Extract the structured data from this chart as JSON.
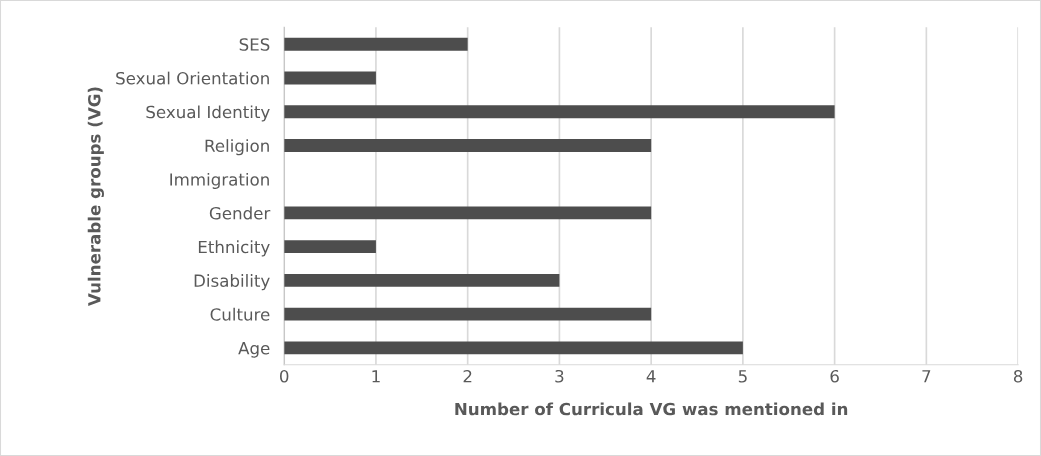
{
  "chart_data": {
    "type": "bar",
    "orientation": "horizontal",
    "xlabel": "Number of Curricula VG was mentioned in",
    "ylabel": "Vulnerable groups (VG)",
    "categories": [
      "SES",
      "Sexual Orientation",
      "Sexual Identity",
      "Religion",
      "Immigration",
      "Gender",
      "Ethnicity",
      "Disability",
      "Culture",
      "Age"
    ],
    "values": [
      2,
      1,
      6,
      4,
      0,
      4,
      1,
      3,
      4,
      5
    ],
    "color": "#4d4d4d",
    "xlim": [
      0,
      8
    ],
    "xticks": [
      0,
      1,
      2,
      3,
      4,
      5,
      6,
      7,
      8
    ],
    "grid": "x",
    "legend": false
  }
}
